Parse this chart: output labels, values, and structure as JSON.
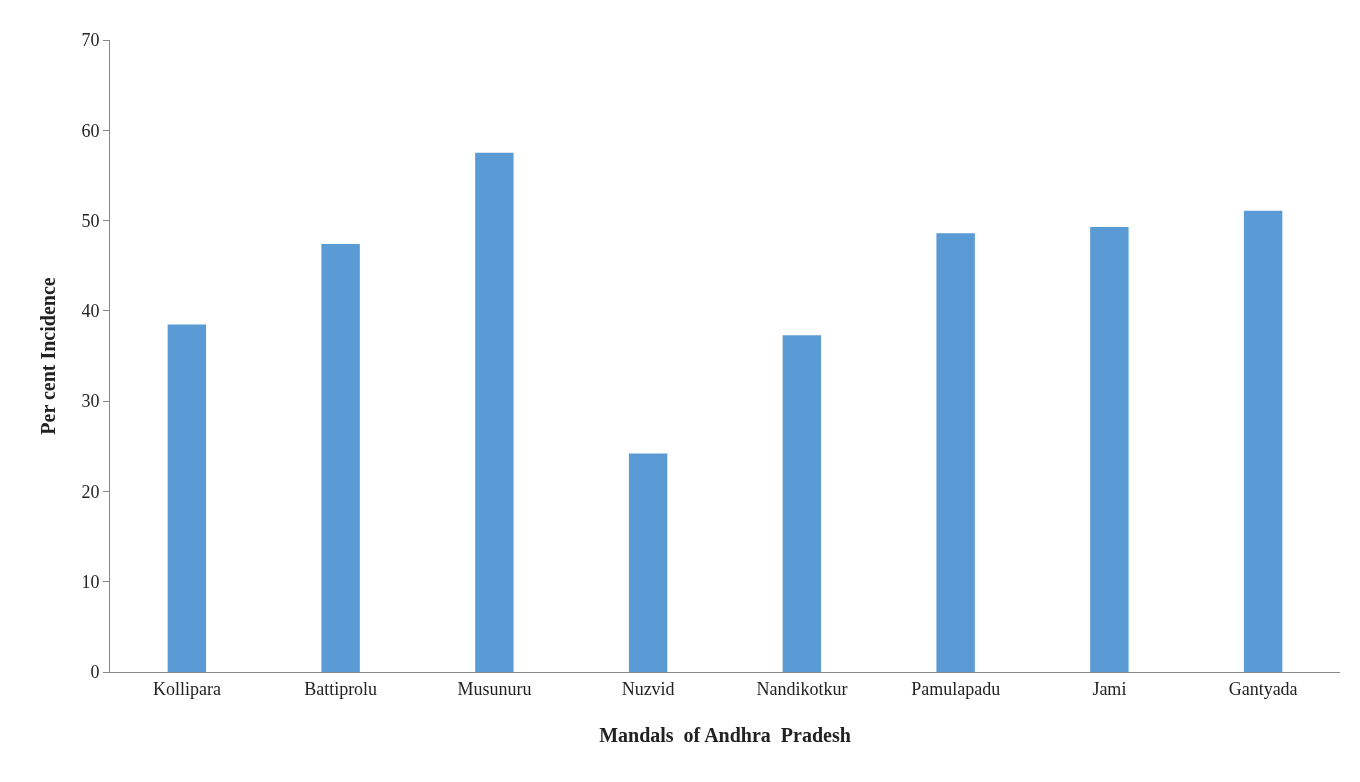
{
  "chart_data": {
    "type": "bar",
    "xlabel": "Mandals  of Andhra  Pradesh",
    "ylabel": "Per cent Incidence",
    "categories": [
      "Kollipara",
      "Battiprolu",
      "Musunuru",
      "Nuzvid",
      "Nandikotkur",
      "Pamulapadu",
      "Jami",
      "Gantyada"
    ],
    "values": [
      38.5,
      47.4,
      57.5,
      24.2,
      37.3,
      48.6,
      49.3,
      51.1
    ],
    "color": "#5b9bd5",
    "ylim": [
      0,
      70
    ],
    "yticks": [
      0,
      10,
      20,
      30,
      40,
      50,
      60,
      70
    ]
  }
}
